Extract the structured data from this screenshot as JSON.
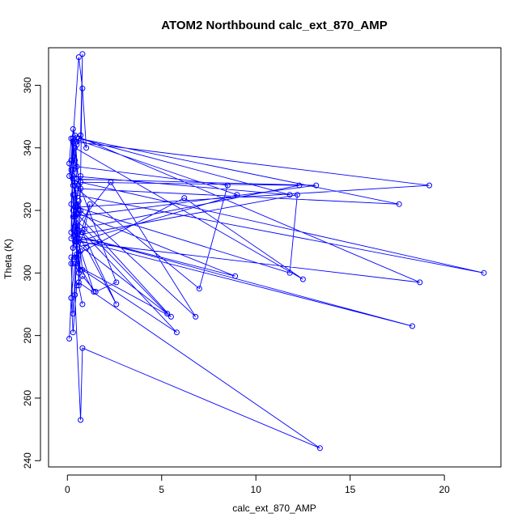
{
  "chart_data": {
    "type": "line",
    "title": "ATOM2 Northbound calc_ext_870_AMP",
    "xlabel": "calc_ext_870_AMP",
    "ylabel": "Theta (K)",
    "xlim": [
      -1.0,
      23.0
    ],
    "ylim": [
      238,
      372
    ],
    "xticks": [
      0,
      5,
      10,
      15,
      20
    ],
    "yticks": [
      240,
      260,
      280,
      300,
      320,
      340,
      360
    ],
    "grid": false,
    "legend": "none",
    "color": "#0000ff",
    "marker": "open-circle",
    "series": [
      {
        "x": [
          0.1,
          0.2,
          0.4,
          0.6,
          0.7,
          0.8,
          0.7,
          0.5,
          0.3,
          0.2,
          0.3,
          0.5,
          0.6,
          0.4,
          0.2,
          0.3,
          0.6,
          0.8,
          1.0,
          0.7,
          0.5,
          0.3,
          0.2,
          0.1,
          0.3,
          0.5,
          0.4,
          0.2,
          0.1,
          0.3,
          0.6,
          1.2,
          0.9,
          0.5,
          0.4,
          0.2,
          0.3,
          0.5,
          0.8,
          1.5,
          2.6,
          0.7,
          0.4,
          0.3,
          0.2,
          0.4,
          0.7,
          0.5,
          0.3,
          0.5,
          0.8,
          2.6,
          1.0,
          0.4,
          0.2,
          0.3,
          0.6,
          0.4,
          0.7,
          0.8,
          13.4,
          0.6,
          0.4,
          0.5,
          12.3,
          0.7,
          22.1,
          0.4,
          0.3,
          19.2,
          0.5,
          11.8,
          12.2,
          0.4,
          18.3,
          0.2,
          0.6,
          0.4,
          0.8,
          5.8,
          0.5,
          2.3,
          6.8,
          0.7,
          0.4,
          18.7,
          0.5,
          9.0,
          0.3,
          0.5,
          13.2,
          0.4,
          0.5,
          5.5,
          0.3,
          0.2,
          6.2,
          12.5,
          0.4,
          0.5,
          8.5,
          7.0,
          0.5,
          17.6,
          0.6,
          11.8,
          0.3,
          0.6,
          8.9,
          0.4,
          0.5,
          0.3,
          5.3,
          0.4,
          0.3,
          1.7,
          0.5,
          1.4,
          0.4,
          0.7,
          0.6,
          0.8
        ],
        "y": [
          279,
          292,
          303,
          300,
          331,
          370,
          344,
          341,
          333,
          322,
          308,
          319,
          323,
          318,
          313,
          343,
          369,
          359,
          340,
          344,
          342,
          346,
          336,
          331,
          328,
          322,
          329,
          343,
          335,
          325,
          311,
          322,
          314,
          305,
          329,
          292,
          281,
          296,
          299,
          294,
          297,
          327,
          336,
          342,
          333,
          312,
          301,
          306,
          320,
          313,
          313,
          290,
          308,
          313,
          303,
          287,
          320,
          293,
          253,
          276,
          244,
          297,
          328,
          314,
          328,
          329,
          300,
          325,
          342,
          328,
          321,
          300,
          325,
          312,
          283,
          311,
          328,
          321,
          301,
          281,
          315,
          329,
          286,
          320,
          344,
          297,
          310,
          325,
          343,
          330,
          328,
          318,
          319,
          286,
          303,
          305,
          324,
          298,
          340,
          334,
          328,
          295,
          327,
          322,
          343,
          325,
          331,
          319,
          299,
          312,
          321,
          318,
          287,
          310,
          308,
          310,
          311,
          294,
          305,
          307,
          296,
          290
        ]
      }
    ]
  }
}
